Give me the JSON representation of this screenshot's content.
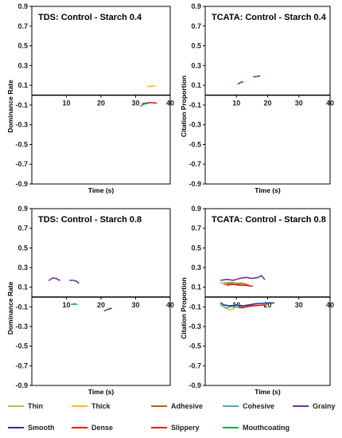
{
  "chart_data": [
    {
      "type": "line",
      "title": "TDS: Control - Starch 0.4",
      "xlabel": "Time (s)",
      "ylabel": "Dominance Rate",
      "xlim": [
        0,
        40
      ],
      "ylim": [
        -0.9,
        0.9
      ],
      "xticks": [
        "10",
        "20",
        "30",
        "40"
      ],
      "yticks": [
        "0.9",
        "0.7",
        "0.5",
        "0.3",
        "0.1",
        "-0.1",
        "-0.3",
        "-0.5",
        "-0.7",
        "-0.9"
      ],
      "series": [
        {
          "name": "Thick",
          "color": "#FFC000",
          "points": [
            [
              33.5,
              0.09
            ],
            [
              34.5,
              0.09
            ],
            [
              35.5,
              0.095
            ]
          ]
        },
        {
          "name": "Slippery",
          "color": "#E02020",
          "points": [
            [
              32,
              -0.085
            ],
            [
              34,
              -0.075
            ],
            [
              36,
              -0.08
            ]
          ]
        },
        {
          "name": "Mouthcoating",
          "color": "#00B050",
          "points": [
            [
              31.5,
              -0.11
            ],
            [
              32.5,
              -0.09
            ],
            [
              33.5,
              -0.085
            ]
          ]
        }
      ]
    },
    {
      "type": "line",
      "title": "TCATA: Control - Starch 0.4",
      "xlabel": "Time (s)",
      "ylabel": "Citation Proportion",
      "xlim": [
        0,
        40
      ],
      "ylim": [
        -0.9,
        0.9
      ],
      "xticks": [
        "10",
        "20",
        "30",
        "40"
      ],
      "yticks": [
        "0.9",
        "0.7",
        "0.5",
        "0.3",
        "0.1",
        "-0.1",
        "-0.3",
        "-0.5",
        "-0.7",
        "-0.9"
      ],
      "series": [
        {
          "name": "Grainy",
          "color": "#7030A0",
          "points": [
            [
              10.5,
              0.115
            ],
            [
              11.5,
              0.13
            ],
            [
              12,
              0.135
            ]
          ]
        },
        {
          "name": "Grainy",
          "color": "#7030A0",
          "points": [
            [
              15.5,
              0.185
            ],
            [
              16.5,
              0.19
            ],
            [
              17.5,
              0.195
            ]
          ]
        }
      ]
    },
    {
      "type": "line",
      "title": "TDS: Control - Starch 0.8",
      "xlabel": "Time (s)",
      "ylabel": "Dominance Rate",
      "xlim": [
        0,
        40
      ],
      "ylim": [
        -0.9,
        0.9
      ],
      "xticks": [
        "10",
        "20",
        "30",
        "40"
      ],
      "yticks": [
        "0.9",
        "0.7",
        "0.5",
        "0.3",
        "0.1",
        "-0.1",
        "-0.3",
        "-0.5",
        "-0.7",
        "-0.9"
      ],
      "series": [
        {
          "name": "Grainy",
          "color": "#7030A0",
          "points": [
            [
              5,
              0.17
            ],
            [
              6,
              0.195
            ],
            [
              7,
              0.19
            ],
            [
              8,
              0.17
            ]
          ]
        },
        {
          "name": "Grainy",
          "color": "#7030A0",
          "points": [
            [
              11,
              0.17
            ],
            [
              12,
              0.17
            ],
            [
              13,
              0.16
            ],
            [
              13.5,
              0.14
            ]
          ]
        },
        {
          "name": "Grainy",
          "color": "#7030A0",
          "points": [
            [
              21,
              -0.14
            ],
            [
              22,
              -0.125
            ],
            [
              23,
              -0.115
            ]
          ]
        },
        {
          "name": "Mouthcoating",
          "color": "#00B050",
          "points": [
            [
              11.5,
              -0.075
            ],
            [
              12.5,
              -0.07
            ],
            [
              13,
              -0.075
            ]
          ]
        }
      ]
    },
    {
      "type": "line",
      "title": "TCATA: Control - Starch 0.8",
      "xlabel": "Time (s)",
      "ylabel": "Citation Proportion",
      "xlim": [
        0,
        40
      ],
      "ylim": [
        -0.9,
        0.9
      ],
      "xticks": [
        "10",
        "20",
        "30",
        "40"
      ],
      "yticks": [
        "0.9",
        "0.7",
        "0.5",
        "0.3",
        "0.1",
        "-0.1",
        "-0.3",
        "-0.5",
        "-0.7",
        "-0.9"
      ],
      "series": [
        {
          "name": "Grainy",
          "color": "#7030A0",
          "points": [
            [
              5,
              0.17
            ],
            [
              7,
              0.18
            ],
            [
              9,
              0.17
            ],
            [
              11,
              0.19
            ],
            [
              13,
              0.2
            ],
            [
              15,
              0.19
            ],
            [
              17,
              0.2
            ],
            [
              18,
              0.22
            ],
            [
              19,
              0.18
            ]
          ]
        },
        {
          "name": "Thin",
          "color": "#92D050",
          "points": [
            [
              5,
              0.14
            ],
            [
              7,
              0.15
            ],
            [
              9,
              0.15
            ],
            [
              11,
              0.14
            ],
            [
              12,
              0.14
            ]
          ]
        },
        {
          "name": "Adhesive",
          "color": "#C55A11",
          "points": [
            [
              6,
              0.13
            ],
            [
              8,
              0.14
            ],
            [
              10,
              0.13
            ],
            [
              12,
              0.14
            ],
            [
              14,
              0.12
            ]
          ]
        },
        {
          "name": "Slippery",
          "color": "#E02020",
          "points": [
            [
              7,
              0.12
            ],
            [
              9,
              0.13
            ],
            [
              11,
              0.12
            ],
            [
              13,
              0.12
            ],
            [
              15,
              0.11
            ]
          ]
        },
        {
          "name": "Thick",
          "color": "#FFC000",
          "points": [
            [
              5,
              -0.08
            ],
            [
              6,
              -0.1
            ],
            [
              7,
              -0.12
            ],
            [
              8,
              -0.13
            ],
            [
              9,
              -0.12
            ],
            [
              10,
              -0.1
            ],
            [
              11,
              -0.08
            ],
            [
              12,
              -0.09
            ]
          ]
        },
        {
          "name": "Cohesive",
          "color": "#4BACC6",
          "points": [
            [
              5,
              -0.08
            ],
            [
              6,
              -0.1
            ],
            [
              7,
              -0.11
            ],
            [
              8,
              -0.1
            ],
            [
              9,
              -0.09
            ],
            [
              10,
              -0.1
            ],
            [
              11,
              -0.11
            ],
            [
              12,
              -0.1
            ]
          ]
        },
        {
          "name": "Smooth",
          "color": "#1F3A93",
          "points": [
            [
              5,
              -0.06
            ],
            [
              6,
              -0.08
            ],
            [
              8,
              -0.09
            ],
            [
              10,
              -0.08
            ],
            [
              12,
              -0.09
            ],
            [
              14,
              -0.08
            ],
            [
              16,
              -0.07
            ],
            [
              18,
              -0.065
            ],
            [
              20,
              -0.06
            ],
            [
              22,
              -0.06
            ]
          ]
        },
        {
          "name": "Dense",
          "color": "#FF0000",
          "points": [
            [
              11,
              -0.1
            ],
            [
              12,
              -0.11
            ],
            [
              13,
              -0.1
            ],
            [
              15,
              -0.09
            ],
            [
              17,
              -0.085
            ],
            [
              19,
              -0.08
            ]
          ]
        }
      ]
    }
  ],
  "legend": [
    {
      "label": "Thin",
      "color": "#92D050"
    },
    {
      "label": "Thick",
      "color": "#FFC000"
    },
    {
      "label": "Adhesive",
      "color": "#C55A11"
    },
    {
      "label": "Cohesive",
      "color": "#4BACC6"
    },
    {
      "label": "Grainy",
      "color": "#7030A0"
    },
    {
      "label": "Smooth",
      "color": "#1F3A93"
    },
    {
      "label": "Dense",
      "color": "#FF0000"
    },
    {
      "label": "Slippery",
      "color": "#E02020"
    },
    {
      "label": "Mouthcoating",
      "color": "#00B050"
    }
  ]
}
